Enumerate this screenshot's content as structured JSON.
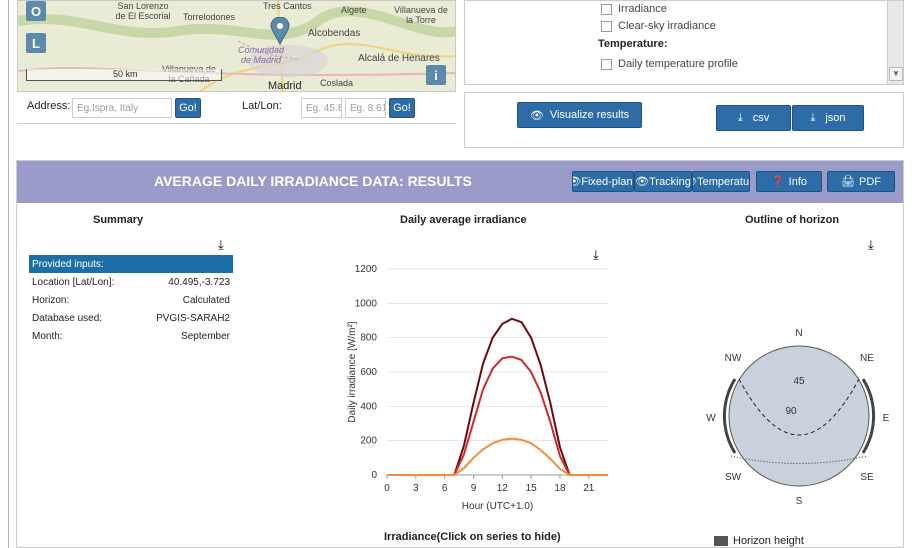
{
  "map": {
    "btn_o": "O",
    "btn_l": "L",
    "btn_i": "i",
    "scale": "50 km",
    "places": [
      "San Lorenzo de El Escorial",
      "Torrelodones",
      "Tres Cantos",
      "Algete",
      "Villanueva de la Torre",
      "Alcobendas",
      "Comunidad de Madrid",
      "Alcalá de Henares",
      "Villanueva de la Cañada",
      "Madrid",
      "Coslada"
    ]
  },
  "address": {
    "label": "Address:",
    "placeholder": "Eg.Ispra, Italy",
    "go": "Go!"
  },
  "latlon": {
    "label": "Lat/Lon:",
    "lat_placeholder": "Eg. 45.8",
    "lon_placeholder": "Eg. 8.61",
    "go": "Go!"
  },
  "options": {
    "irradiance": "Irradiance",
    "clearsky": "Clear-sky irradiance",
    "temperature_heading": "Temperature:",
    "daily_temp": "Daily temperature profile"
  },
  "actions": {
    "visualize": "Visualize results",
    "csv": "csv",
    "json": "json"
  },
  "results": {
    "title": "AVERAGE DAILY IRRADIANCE DATA: RESULTS",
    "tabs": [
      "Fixed-plane",
      "Tracking",
      "Temperature"
    ],
    "info": "Info",
    "pdf": "PDF"
  },
  "summary": {
    "title": "Summary",
    "provided": "Provided inputs:",
    "rows": [
      {
        "k": "Location [Lat/Lon]:",
        "v": "40.495,-3.723"
      },
      {
        "k": "Horizon:",
        "v": "Calculated"
      },
      {
        "k": "Database used:",
        "v": "PVGIS-SARAH2"
      },
      {
        "k": "Month:",
        "v": "September"
      }
    ]
  },
  "chart_data": {
    "type": "line",
    "title": "Daily average irradiance",
    "xlabel": "Hour (UTC+1.0)",
    "ylabel": "Daily irradiance [W/m²]",
    "xlim": [
      0,
      23
    ],
    "ylim": [
      0,
      1200
    ],
    "xticks": [
      0,
      3,
      6,
      9,
      12,
      15,
      18,
      21
    ],
    "yticks": [
      0,
      200,
      400,
      600,
      800,
      1000,
      1200
    ],
    "legend_title": "Irradiance(Click on series to hide)",
    "x": [
      0,
      1,
      2,
      3,
      4,
      5,
      6,
      7,
      8,
      9,
      10,
      11,
      12,
      13,
      14,
      15,
      16,
      17,
      18,
      19,
      20,
      21,
      22,
      23
    ],
    "series": [
      {
        "color": "#6b0a0a",
        "values": [
          0,
          0,
          0,
          0,
          0,
          0,
          0,
          0,
          170,
          420,
          650,
          800,
          880,
          910,
          890,
          800,
          640,
          420,
          160,
          0,
          0,
          0,
          0,
          0
        ]
      },
      {
        "color": "#cc2a2a",
        "values": [
          0,
          0,
          0,
          0,
          0,
          0,
          0,
          0,
          120,
          310,
          500,
          620,
          680,
          690,
          670,
          600,
          480,
          310,
          110,
          0,
          0,
          0,
          0,
          0
        ]
      },
      {
        "color": "#f28c3c",
        "values": [
          0,
          0,
          0,
          0,
          0,
          0,
          0,
          0,
          40,
          100,
          150,
          185,
          205,
          212,
          205,
          185,
          145,
          95,
          35,
          0,
          0,
          0,
          0,
          0
        ]
      }
    ]
  },
  "horizon": {
    "title": "Outline of horizon",
    "directions": {
      "n": "N",
      "ne": "NE",
      "e": "E",
      "se": "SE",
      "s": "S",
      "sw": "SW",
      "w": "W",
      "nw": "NW"
    },
    "ring45": "45",
    "ring90": "90",
    "legend": "Horizon height",
    "colors": {
      "sphere": "#c9d2dc",
      "legend": "#555555"
    }
  }
}
